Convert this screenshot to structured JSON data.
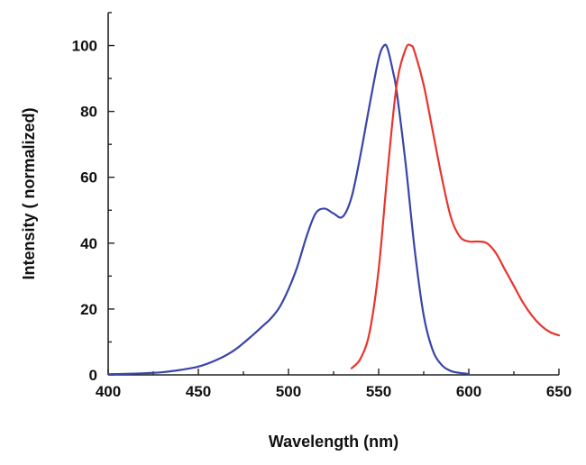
{
  "chart_data": {
    "type": "line",
    "title": "",
    "xlabel": "Wavelength (nm)",
    "ylabel": "Intensity ( normalized)",
    "xlim": [
      400,
      650
    ],
    "ylim": [
      0,
      110
    ],
    "xticks": [
      400,
      450,
      500,
      550,
      600,
      650
    ],
    "xtick_labels": [
      "400",
      "450",
      "500",
      "550",
      "600",
      "650"
    ],
    "yticks": [
      0,
      20,
      40,
      60,
      80,
      100
    ],
    "ytick_labels": [
      "0",
      "20",
      "40",
      "60",
      "80",
      "100"
    ],
    "grid": false,
    "series": [
      {
        "name": "blue",
        "color": "#3a44a8",
        "x": [
          400,
          410,
          420,
          430,
          440,
          450,
          460,
          470,
          480,
          485,
          490,
          495,
          500,
          505,
          510,
          515,
          520,
          525,
          530,
          535,
          540,
          545,
          550,
          553,
          555,
          558,
          560,
          565,
          570,
          575,
          580,
          585,
          590,
          595,
          600
        ],
        "y": [
          0.2,
          0.3,
          0.5,
          0.8,
          1.5,
          2.5,
          4.5,
          7.5,
          12,
          14.5,
          17,
          20.5,
          26,
          33,
          42,
          49,
          50.5,
          49,
          48,
          54,
          67,
          82,
          96,
          100,
          99,
          92,
          86,
          64,
          38,
          18,
          7.5,
          3,
          1.2,
          0.6,
          0.3
        ]
      },
      {
        "name": "red",
        "color": "#e8352e",
        "x": [
          535,
          540,
          545,
          550,
          555,
          560,
          565,
          568,
          570,
          575,
          580,
          585,
          590,
          595,
          600,
          605,
          610,
          615,
          620,
          625,
          630,
          635,
          640,
          645,
          650
        ],
        "y": [
          2,
          5,
          13,
          32,
          62,
          88,
          99,
          100,
          98,
          88,
          74,
          60,
          48,
          42,
          40.5,
          40.5,
          40,
          37,
          32,
          27,
          22,
          18,
          15,
          13,
          12
        ]
      }
    ]
  }
}
